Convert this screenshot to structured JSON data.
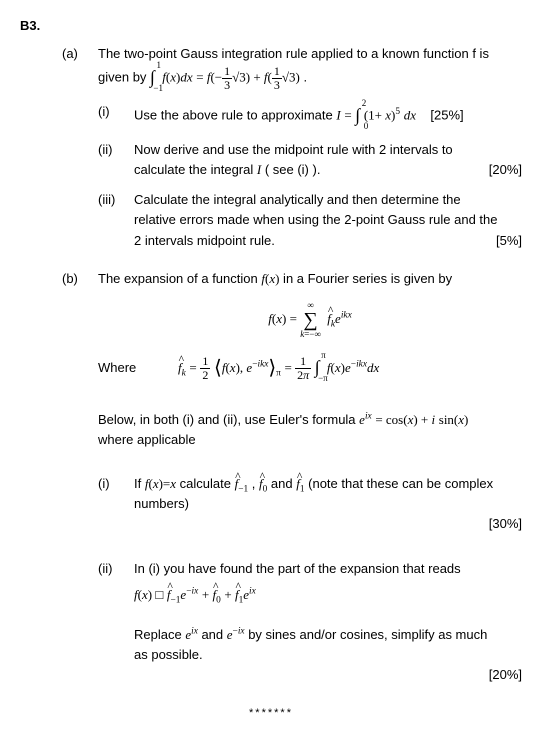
{
  "question": "B3.",
  "a": {
    "label": "(a)",
    "intro1": "The two-point Gauss integration rule applied to a known function f is",
    "intro2_prefix": "given by   ",
    "i": {
      "label": "(i)",
      "text_pre": "Use the above rule to approximate ",
      "pct": "[25%]"
    },
    "ii": {
      "label": "(ii)",
      "line1": "Now derive and use the midpoint rule with 2 intervals to",
      "line2": "calculate the integral ",
      "line2_tail": " ( see (i) ).",
      "pct": "[20%]"
    },
    "iii": {
      "label": "(iii)",
      "line1": "Calculate the integral analytically and then determine the",
      "line2": "relative errors made when using the 2-point Gauss rule and the",
      "line3": "2 intervals midpoint rule.",
      "pct": "[5%]"
    }
  },
  "b": {
    "label": "(b)",
    "intro_pre": "The expansion of a function ",
    "intro_mid": " in a Fourier series is given by",
    "where": "Where",
    "below1_pre": "Below, in both (i) and (ii), use Euler's formula ",
    "below2": "where applicable",
    "i": {
      "label": "(i)",
      "text_pre": "If ",
      "text_mid": " calculate  ",
      "text_tail": "  (note that these can be complex",
      "text_line2": "numbers)",
      "pct": "[30%]"
    },
    "ii": {
      "label": "(ii)",
      "line1": "In (i) you have found the part of the expansion that reads",
      "line3a": "Replace ",
      "line3b": " and ",
      "line3c": " by sines and/or cosines, simplify as much",
      "line4": "as possible.",
      "pct": "[20%]"
    }
  },
  "stars": "*******"
}
